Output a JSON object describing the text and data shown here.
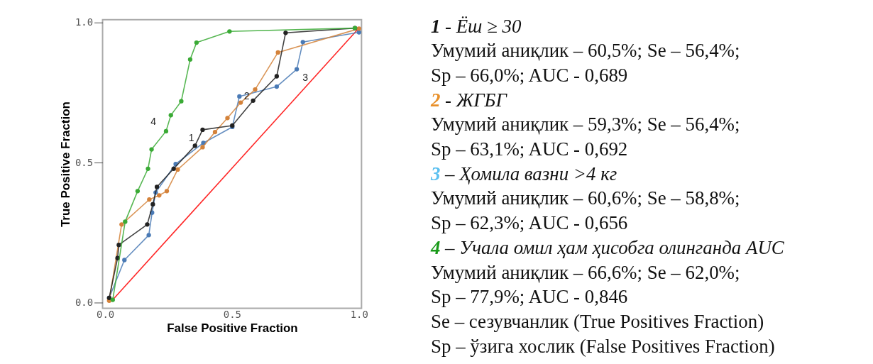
{
  "chart_data": {
    "type": "line",
    "xlabel": "False Positive Fraction",
    "ylabel": "True Positive Fraction",
    "xlim": [
      -0.01,
      1.01
    ],
    "ylim": [
      -0.02,
      1.01
    ],
    "xticks": [
      {
        "value": 0,
        "label": "0.0"
      },
      {
        "value": 0.5,
        "label": "0.5"
      },
      {
        "value": 1,
        "label": "1.0"
      }
    ],
    "yticks": [
      {
        "value": 0,
        "label": "0.0"
      },
      {
        "value": 0.5,
        "label": "0.5"
      },
      {
        "value": 1,
        "label": "1.0"
      }
    ],
    "grid": false,
    "marker": "circle",
    "series": [
      {
        "color": "#ff0000",
        "marker": "none",
        "x": [
          0.03,
          1.0
        ],
        "values": [
          0.01,
          0.98
        ]
      },
      {
        "name": "3",
        "color": "#4a7ab5",
        "x": [
          0.016,
          0.076,
          0.172,
          0.185,
          0.199,
          0.278,
          0.387,
          0.501,
          0.529,
          0.676,
          0.755,
          0.779,
          1.0
        ],
        "values": [
          0.017,
          0.152,
          0.241,
          0.321,
          0.393,
          0.495,
          0.57,
          0.627,
          0.736,
          0.771,
          0.833,
          0.93,
          0.965
        ]
      },
      {
        "name": "2",
        "color": "#d4823a",
        "x": [
          0.016,
          0.065,
          0.174,
          0.213,
          0.243,
          0.286,
          0.384,
          0.433,
          0.482,
          0.534,
          0.591,
          0.681,
          1.0
        ],
        "values": [
          0.007,
          0.279,
          0.368,
          0.383,
          0.398,
          0.475,
          0.555,
          0.609,
          0.659,
          0.714,
          0.761,
          0.893,
          0.978
        ]
      },
      {
        "name": "1",
        "color": "#222222",
        "x": [
          0.016,
          0.049,
          0.054,
          0.166,
          0.188,
          0.204,
          0.27,
          0.354,
          0.384,
          0.501,
          0.583,
          0.676,
          0.711,
          0.984
        ],
        "values": [
          0.017,
          0.159,
          0.206,
          0.279,
          0.351,
          0.413,
          0.478,
          0.56,
          0.617,
          0.632,
          0.721,
          0.808,
          0.963,
          0.98
        ]
      },
      {
        "name": "4",
        "color": "#3aaa35",
        "x": [
          0.03,
          0.079,
          0.128,
          0.169,
          0.183,
          0.24,
          0.259,
          0.3,
          0.335,
          0.36,
          0.49,
          0.984
        ],
        "values": [
          0.01,
          0.289,
          0.398,
          0.478,
          0.547,
          0.612,
          0.669,
          0.719,
          0.868,
          0.928,
          0.968,
          0.98
        ]
      }
    ],
    "annotations": [
      "1 - Ёш ≥ 30",
      "Умумий аниқлик – 60,5%; Se – 56,4%;",
      "Sp – 66,0%; AUC - 0,689",
      "2 - ЖГБГ",
      "Умумий аниқлик – 59,3%; Se – 56,4%;",
      "Sp – 63,1%; AUC - 0,692",
      "3 – Ҳомила вазни >4 кг",
      "Умумий аниқлик – 60,6%; Se – 58,8%;",
      "Sp – 62,3%; AUC - 0,656",
      "4 – Учала омил ҳам ҳисобга олинганда AUC",
      "Умумий аниқлик – 66,6%; Se – 62,0%;",
      "Sp – 77,9%; AUC - 0,846",
      "Se – сезувчанлик (True Positives Fraction)",
      "Sp – ўзига хослик (False Positives Fraction)"
    ]
  }
}
